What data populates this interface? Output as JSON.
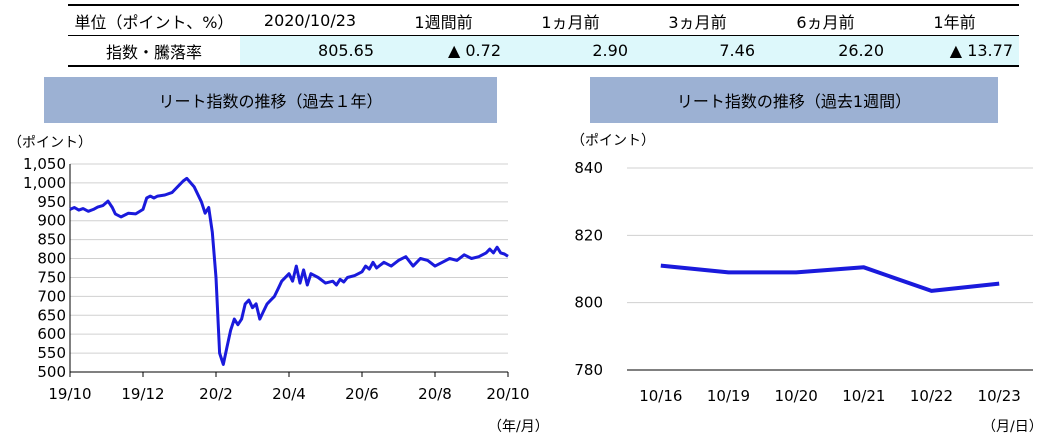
{
  "table": {
    "header": [
      "単位（ポイント、%）",
      "2020/10/23",
      "1週間前",
      "1ヵ月前",
      "3ヵ月前",
      "6ヵ月前",
      "1年前"
    ],
    "row_label": "指数・騰落率",
    "row_values": [
      "805.65",
      "▲ 0.72",
      "2.90",
      "7.46",
      "26.20",
      "▲ 13.77"
    ]
  },
  "charts": {
    "left_banner": "リート指数の推移（過去１年）",
    "right_banner": "リート指数の推移（過去1週間）"
  },
  "chart_data": [
    {
      "type": "line",
      "title": "リート指数の推移（過去１年）",
      "ylabel": "（ポイント）",
      "xlabel": "（年/月）",
      "ylim": [
        500,
        1050
      ],
      "yticks": [
        "500",
        "550",
        "600",
        "650",
        "700",
        "750",
        "800",
        "850",
        "900",
        "950",
        "1,000",
        "1,050"
      ],
      "xticks": [
        "19/10",
        "19/12",
        "20/2",
        "20/4",
        "20/6",
        "20/8",
        "20/10"
      ],
      "grid": "horizontal",
      "series": [
        {
          "color": "#1a1adc",
          "x": [
            0.0,
            0.06,
            0.12,
            0.18,
            0.25,
            0.32,
            0.38,
            0.45,
            0.52,
            0.58,
            0.62,
            0.7,
            0.8,
            0.9,
            1.0,
            1.05,
            1.1,
            1.15,
            1.2,
            1.3,
            1.4,
            1.45,
            1.5,
            1.55,
            1.6,
            1.7,
            1.8,
            1.85,
            1.9,
            1.95,
            2.0,
            2.05,
            2.1,
            2.15,
            2.2,
            2.25,
            2.3,
            2.35,
            2.4,
            2.45,
            2.5,
            2.55,
            2.6,
            2.65,
            2.7,
            2.75,
            2.8,
            2.85,
            2.9,
            3.0,
            3.05,
            3.1,
            3.15,
            3.2,
            3.25,
            3.3,
            3.4,
            3.5,
            3.6,
            3.65,
            3.7,
            3.75,
            3.8,
            3.9,
            4.0,
            4.05,
            4.1,
            4.15,
            4.2,
            4.3,
            4.4,
            4.5,
            4.6,
            4.7,
            4.8,
            4.9,
            5.0,
            5.1,
            5.2,
            5.3,
            5.4,
            5.5,
            5.6,
            5.7,
            5.75,
            5.8,
            5.85,
            5.9,
            5.95,
            6.0
          ],
          "y": [
            930,
            935,
            928,
            932,
            925,
            930,
            936,
            940,
            952,
            935,
            918,
            910,
            920,
            918,
            930,
            960,
            965,
            960,
            965,
            968,
            975,
            985,
            995,
            1005,
            1012,
            990,
            950,
            920,
            935,
            870,
            750,
            550,
            520,
            565,
            610,
            640,
            625,
            640,
            680,
            690,
            670,
            680,
            640,
            660,
            680,
            690,
            700,
            720,
            740,
            760,
            740,
            780,
            735,
            770,
            730,
            760,
            750,
            735,
            740,
            730,
            745,
            738,
            750,
            755,
            765,
            780,
            772,
            790,
            775,
            790,
            780,
            795,
            805,
            780,
            800,
            795,
            780,
            790,
            800,
            795,
            810,
            800,
            805,
            815,
            825,
            815,
            830,
            815,
            812,
            806
          ]
        }
      ]
    },
    {
      "type": "line",
      "title": "リート指数の推移（過去1週間）",
      "ylabel": "（ポイント）",
      "xlabel": "（月/日）",
      "ylim": [
        780,
        840
      ],
      "yticks": [
        "780",
        "800",
        "820",
        "840"
      ],
      "categories": [
        "10/16",
        "10/19",
        "10/20",
        "10/21",
        "10/22",
        "10/23"
      ],
      "grid": "horizontal",
      "series": [
        {
          "color": "#1a1adc",
          "values": [
            811,
            809,
            809,
            810.5,
            803.5,
            805.65
          ]
        }
      ]
    }
  ]
}
